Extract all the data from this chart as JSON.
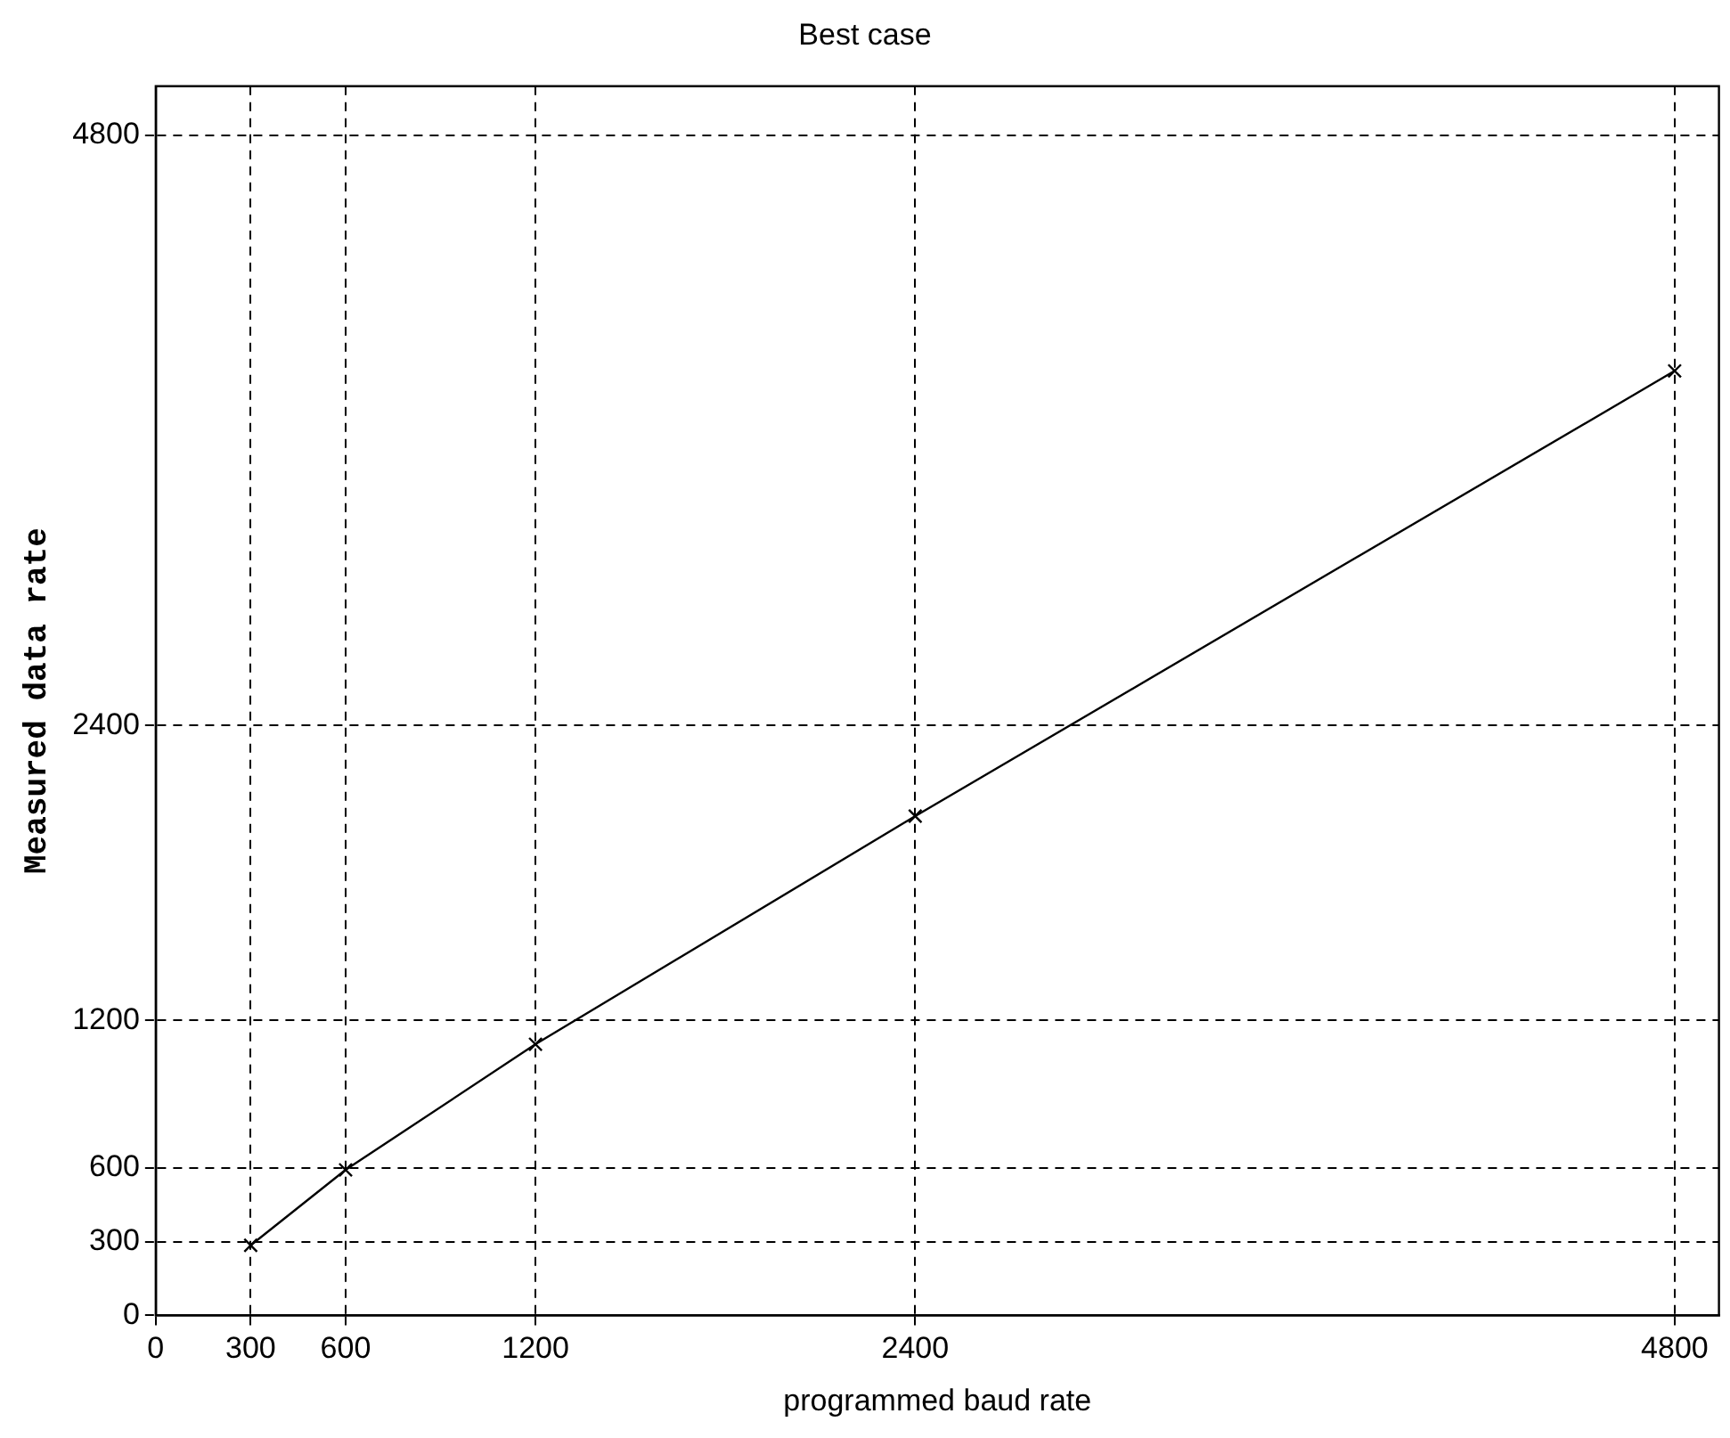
{
  "chart_data": {
    "type": "line",
    "title": "Best case",
    "xlabel": "programmed baud rate",
    "ylabel": "Measured data rate",
    "x": [
      300,
      600,
      1200,
      2400,
      4800
    ],
    "series": [
      {
        "color": "#000000",
        "values": [
          285,
          592,
          1103,
          2031,
          3842
        ]
      }
    ],
    "xlim": [
      0,
      4940
    ],
    "xticks": [
      0,
      300,
      600,
      1200,
      2400,
      4800
    ],
    "ylim": [
      0,
      5000
    ],
    "yticks": [
      0,
      300,
      600,
      1200,
      2400,
      4800
    ],
    "grid": true,
    "marker": "cross",
    "line_style": "solid",
    "legend": false
  }
}
